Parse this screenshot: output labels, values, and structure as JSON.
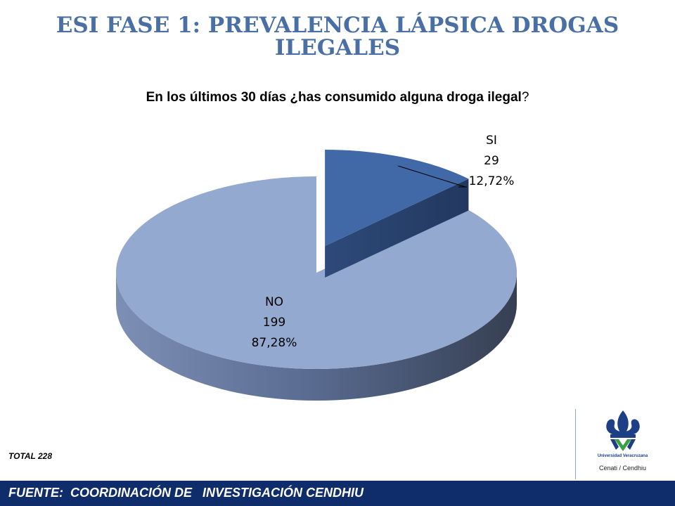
{
  "header": {
    "title": "ESI FASE 1: PREVALENCIA LÁPSICA DROGAS ILEGALES",
    "question_main": "En los últimos 30 días ¿has consumido alguna droga ilegal",
    "question_mark": "?"
  },
  "chart_data": {
    "type": "pie",
    "style": "3d-exploded",
    "slices": [
      {
        "label": "SI",
        "value": 29,
        "percent": "12,72%",
        "color": "#4169a8"
      },
      {
        "label": "NO",
        "value": 199,
        "percent": "87,28%",
        "color": "#93a9d0"
      }
    ]
  },
  "footer": {
    "total": "TOTAL 228",
    "source": "FUENTE:  COORDINACIÓN DE   INVESTIGACIÓN CENDHIU"
  },
  "logo": {
    "institution": "Universidad Veracruzana",
    "unit": "Cenati / Cendhiu"
  }
}
